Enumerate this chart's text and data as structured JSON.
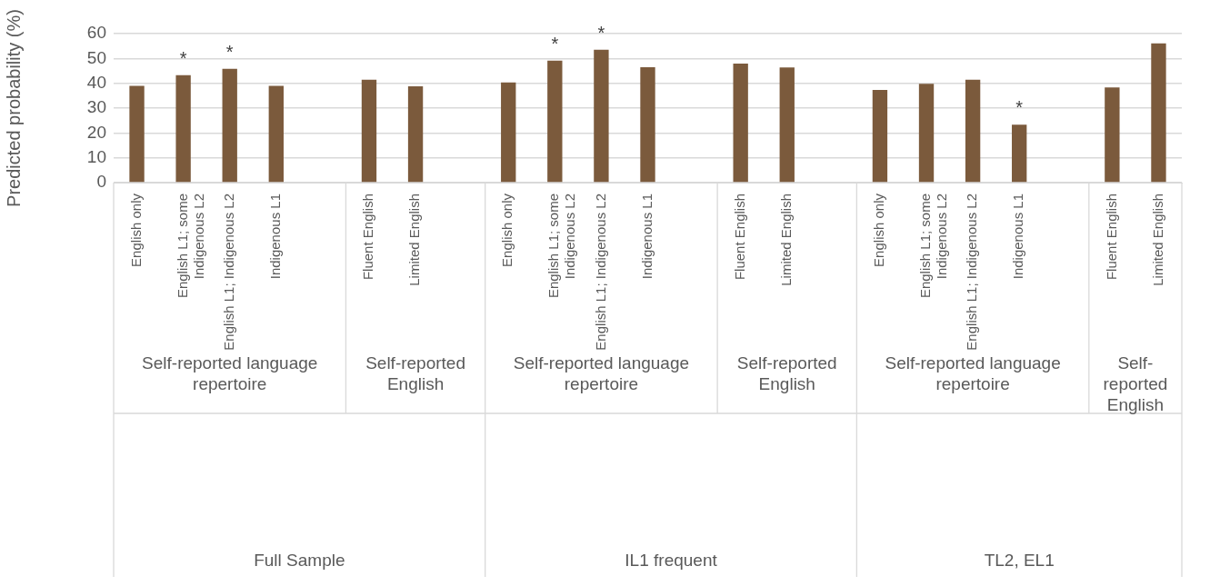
{
  "chart_data": {
    "type": "bar",
    "ylabel": "Predicted probability (%)",
    "categories": [
      "English only",
      "English L1; some Indigenous L2",
      "English L1; Indigenous L2",
      "Indigenous L1",
      null,
      "Fluent English",
      "Limited English",
      null,
      "English only",
      "English L1; some Indigenous L2",
      "English L1; Indigenous L2",
      "Indigenous L1",
      null,
      "Fluent English",
      "Limited English",
      null,
      "English only",
      "English L1; some Indigenous L2",
      "English L1; Indigenous L2",
      "Indigenous L1",
      null,
      "Fluent English",
      "Limited English"
    ],
    "values": [
      39.0,
      43.3,
      45.8,
      39.0,
      null,
      41.4,
      38.8,
      null,
      40.3,
      49.1,
      53.5,
      46.5,
      null,
      47.9,
      46.4,
      null,
      37.3,
      39.8,
      41.4,
      23.3,
      null,
      38.3,
      56.1
    ],
    "value_labels": [
      null,
      "*",
      "*",
      null,
      null,
      null,
      null,
      null,
      null,
      "*",
      "*",
      null,
      null,
      null,
      null,
      null,
      null,
      null,
      null,
      "*",
      null,
      null,
      null
    ],
    "color": "#7b5a3c",
    "ylim": [
      0,
      60
    ],
    "yticks": [
      0,
      10,
      20,
      30,
      40,
      50,
      60
    ],
    "grid": "y",
    "annotations": [
      "Self-reported language repertoire",
      "Self-reported English",
      "Self-reported language repertoire",
      "Self-reported English",
      "Self-reported language repertoire",
      "Self-reported English",
      "Full Sample",
      "IL1 frequent",
      "TL2, EL1"
    ]
  }
}
